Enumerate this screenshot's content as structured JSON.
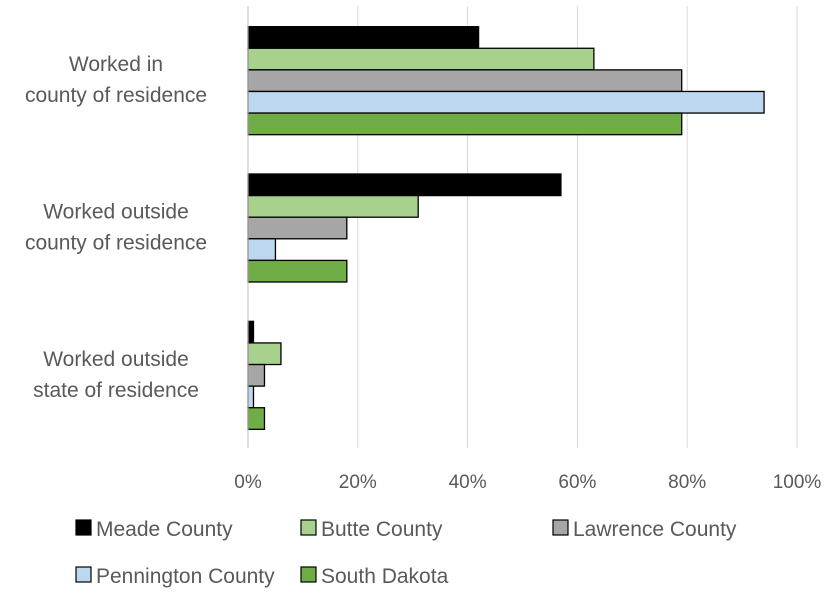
{
  "chart_data": {
    "type": "bar",
    "orientation": "horizontal",
    "title": "",
    "xlabel": "",
    "ylabel": "",
    "xlim": [
      0,
      1.0
    ],
    "x_ticks": [
      "0%",
      "20%",
      "40%",
      "60%",
      "80%",
      "100%"
    ],
    "x_tick_values": [
      0,
      0.2,
      0.4,
      0.6,
      0.8,
      1.0
    ],
    "grid": true,
    "legend_position": "bottom",
    "categories": [
      [
        "Worked in",
        "county of residence"
      ],
      [
        "Worked outside",
        "county of residence"
      ],
      [
        "Worked outside",
        "state of residence"
      ]
    ],
    "series": [
      {
        "name": "Meade County",
        "color": "#000000",
        "values": [
          0.42,
          0.57,
          0.01
        ]
      },
      {
        "name": "Butte County",
        "color": "#a9d18e",
        "values": [
          0.63,
          0.31,
          0.06
        ]
      },
      {
        "name": "Lawrence County",
        "color": "#a6a6a6",
        "values": [
          0.79,
          0.18,
          0.03
        ]
      },
      {
        "name": "Pennington County",
        "color": "#bdd7ee",
        "values": [
          0.94,
          0.05,
          0.01
        ]
      },
      {
        "name": "South Dakota",
        "color": "#70ad47",
        "values": [
          0.79,
          0.18,
          0.03
        ]
      }
    ]
  }
}
